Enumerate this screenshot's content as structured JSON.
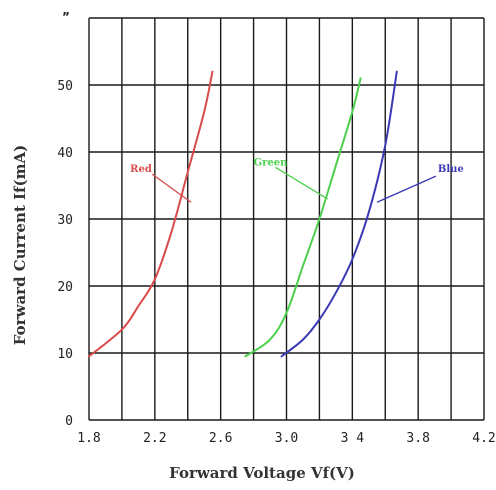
{
  "chart_data": {
    "type": "line",
    "title": "",
    "xlabel": "Forward Voltage Vf(V)",
    "ylabel": "Forward Current If(mA)",
    "xlim": [
      1.8,
      4.2
    ],
    "ylim": [
      0,
      55
    ],
    "x_ticks": [
      1.8,
      2.2,
      2.6,
      3.0,
      3.4,
      3.8,
      4.2
    ],
    "x_tick_labels": [
      "1.8",
      "2.2",
      "2.6",
      "3.0",
      "3 4",
      "3.8",
      "4.2"
    ],
    "y_ticks": [
      0,
      10,
      20,
      30,
      40,
      50
    ],
    "y_tick_labels": [
      "0",
      "10",
      "20",
      "30",
      "40",
      "50"
    ],
    "x_gridlines": [
      1.8,
      2.0,
      2.2,
      2.4,
      2.6,
      2.8,
      3.0,
      3.2,
      3.4,
      3.6,
      3.8,
      4.0,
      4.2
    ],
    "y_gridlines": [
      0,
      10,
      20,
      30,
      40,
      50
    ],
    "grid": true,
    "series": [
      {
        "name": "Red",
        "color": "#d94b4b",
        "x": [
          1.8,
          2.0,
          2.1,
          2.2,
          2.3,
          2.4,
          2.5,
          2.55
        ],
        "y": [
          9.5,
          13.5,
          17,
          21,
          28,
          37,
          46,
          52
        ],
        "label_at": [
          2.05,
          37
        ],
        "pointer_to": [
          2.42,
          32.5
        ]
      },
      {
        "name": "Green",
        "color": "#4ccf4c",
        "x": [
          2.75,
          2.9,
          3.0,
          3.1,
          3.2,
          3.3,
          3.4,
          3.45
        ],
        "y": [
          9.5,
          12,
          16,
          23,
          30,
          38,
          46,
          51
        ],
        "label_at": [
          2.8,
          38
        ],
        "pointer_to": [
          3.25,
          33
        ]
      },
      {
        "name": "Blue",
        "color": "#3a3ab4",
        "x": [
          2.97,
          3.1,
          3.2,
          3.3,
          3.4,
          3.5,
          3.6,
          3.67
        ],
        "y": [
          9.5,
          12,
          15,
          19,
          24,
          31,
          41,
          52
        ],
        "label_at": [
          3.92,
          37
        ],
        "pointer_to": [
          3.55,
          32.5
        ]
      }
    ]
  }
}
